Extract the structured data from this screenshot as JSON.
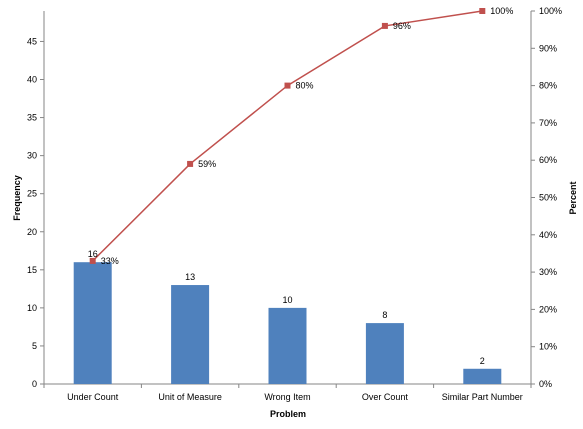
{
  "chart_data": {
    "type": "bar",
    "categories": [
      "Under Count",
      "Unit of Measure",
      "Wrong Item",
      "Over Count",
      "Similar Part Number"
    ],
    "series": [
      {
        "type": "bar",
        "axis": "left",
        "values": [
          16,
          13,
          10,
          8,
          2
        ],
        "data_labels": [
          "16",
          "13",
          "10",
          "8",
          "2"
        ],
        "color": "#4F81BD"
      },
      {
        "type": "line",
        "axis": "right",
        "values": [
          33,
          59,
          80,
          96,
          100
        ],
        "data_labels": [
          "33%",
          "59%",
          "80%",
          "96%",
          "100%"
        ],
        "color": "#C0504D",
        "marker": "square"
      }
    ],
    "xlabel": "Problem",
    "ylabel": "Frequency",
    "y2label": "Percent",
    "ylim": [
      0,
      49
    ],
    "y2lim": [
      0,
      100
    ],
    "yticks": [
      "0",
      "5",
      "10",
      "15",
      "20",
      "25",
      "30",
      "35",
      "40",
      "45"
    ],
    "y2ticks": [
      "0%",
      "10%",
      "20%",
      "30%",
      "40%",
      "50%",
      "60%",
      "70%",
      "80%",
      "90%",
      "100%"
    ],
    "grid": false,
    "legend": "none"
  }
}
